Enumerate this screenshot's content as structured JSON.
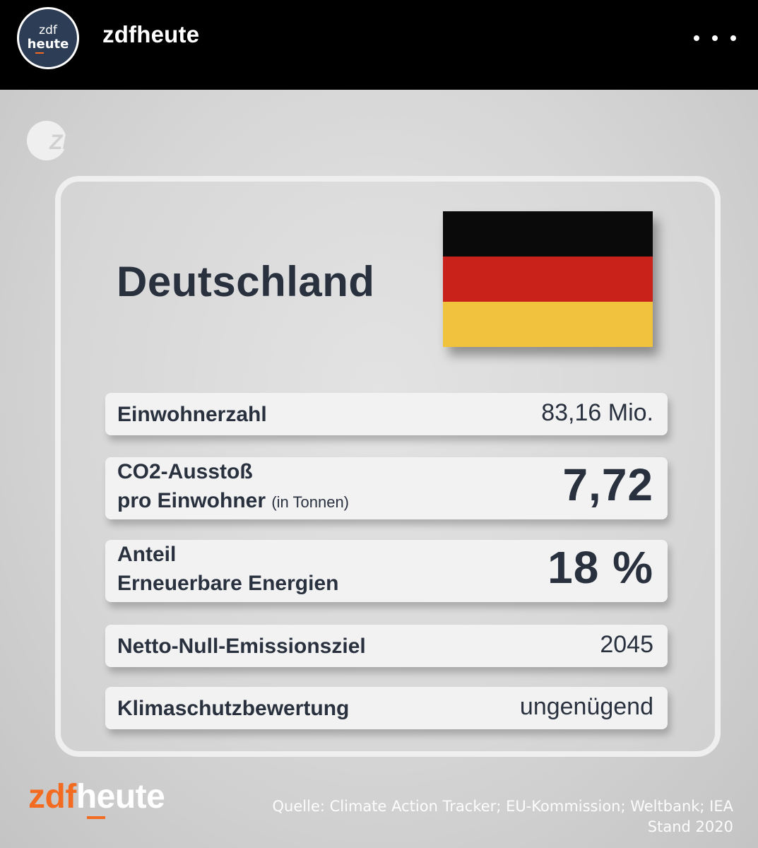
{
  "post_header": {
    "avatar_top": "zdf",
    "avatar_bottom": "heute",
    "account_name": "zdfheute",
    "more_icon": "more-horizontal-icon"
  },
  "graphic": {
    "watermark": "ZDF",
    "country": "Deutschland",
    "flag_colors": [
      "#0a0a0a",
      "#c8221a",
      "#f1c23d"
    ],
    "facts": [
      {
        "label": "Einwohnerzahl",
        "value": "83,16 Mio."
      },
      {
        "label_line1": "CO2-Ausstoß",
        "label_line2": "pro Einwohner",
        "unit": "(in Tonnen)",
        "value": "7,72"
      },
      {
        "label_line1": "Anteil",
        "label_line2": "Erneuerbare Energien",
        "value": "18 %"
      },
      {
        "label": "Netto-Null-Emissionsziel",
        "value": "2045"
      },
      {
        "label": "Klimaschutzbewertung",
        "value": "ungenügend"
      }
    ],
    "brand_zdf": "zdf",
    "brand_heute": "heute",
    "source": "Quelle: Climate Action Tracker; EU-Kommission; Weltbank; IEA",
    "stand": "Stand 2020"
  },
  "colors": {
    "brand_orange": "#f26b21",
    "text_dark": "#29313f",
    "avatar_bg": "#2d3d55"
  }
}
